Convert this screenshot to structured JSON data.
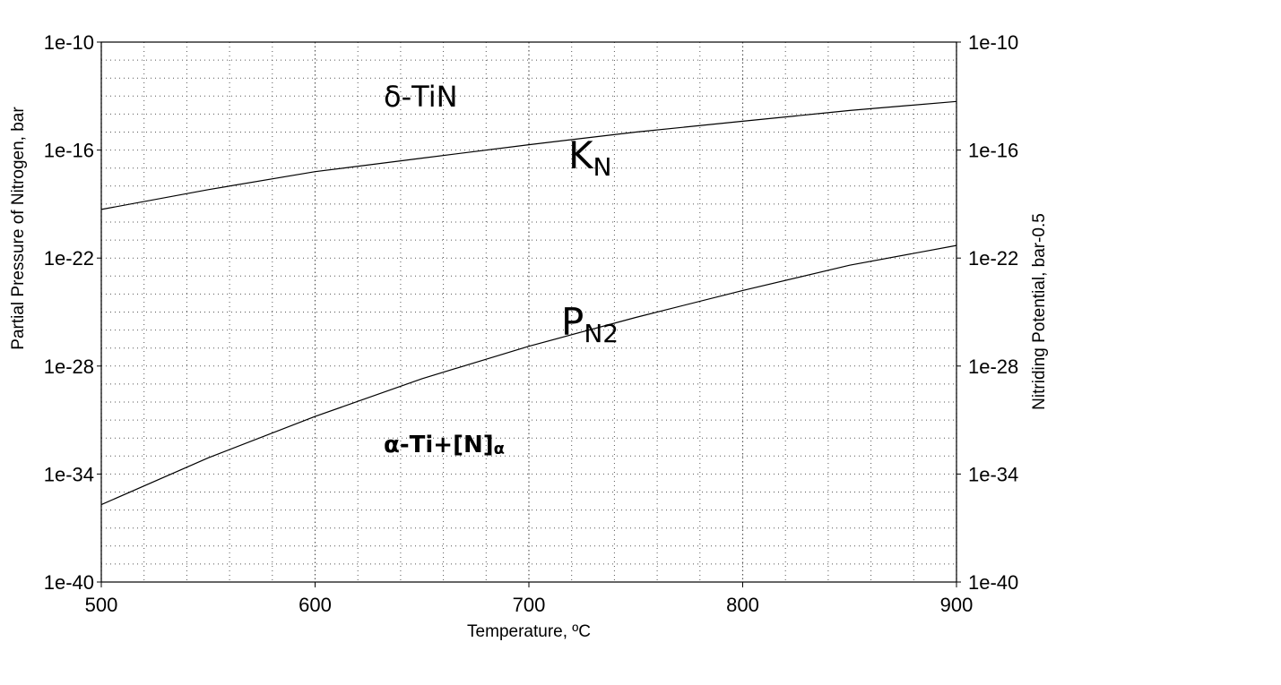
{
  "chart_data": {
    "type": "line",
    "xlabel": "Temperature, ºC",
    "ylabel_left": "Partial Pressure of Nitrogen, bar",
    "ylabel_right": "Nitriding Potential, bar-0.5",
    "xlim": [
      500,
      900
    ],
    "ylim_exp": [
      -40,
      -10
    ],
    "y_scale": "log",
    "x_ticks": [
      500,
      600,
      700,
      800,
      900
    ],
    "x_tick_labels": [
      "500",
      "600",
      "700",
      "800",
      "900"
    ],
    "y_tick_exps": [
      -40,
      -34,
      -28,
      -22,
      -16,
      -10
    ],
    "y_tick_labels": [
      "1e-40",
      "1e-34",
      "1e-28",
      "1e-22",
      "1e-16",
      "1e-10"
    ],
    "grid": true,
    "series": [
      {
        "name": "K",
        "name_sub": "N",
        "x": [
          500,
          550,
          600,
          650,
          700,
          750,
          800,
          850,
          900
        ],
        "log10_y": [
          -19.3,
          -18.2,
          -17.2,
          -16.45,
          -15.7,
          -15.0,
          -14.4,
          -13.8,
          -13.3
        ]
      },
      {
        "name": "P",
        "name_sub": "N2",
        "x": [
          500,
          550,
          600,
          650,
          700,
          750,
          800,
          850,
          900
        ],
        "log10_y": [
          -35.7,
          -33.1,
          -30.8,
          -28.7,
          -26.9,
          -25.3,
          -23.8,
          -22.4,
          -21.3
        ]
      }
    ],
    "annotations": {
      "tin_region": "δ-TiN",
      "alpha_region_main": "α-Ti+[N]",
      "alpha_region_sub": "α"
    }
  }
}
